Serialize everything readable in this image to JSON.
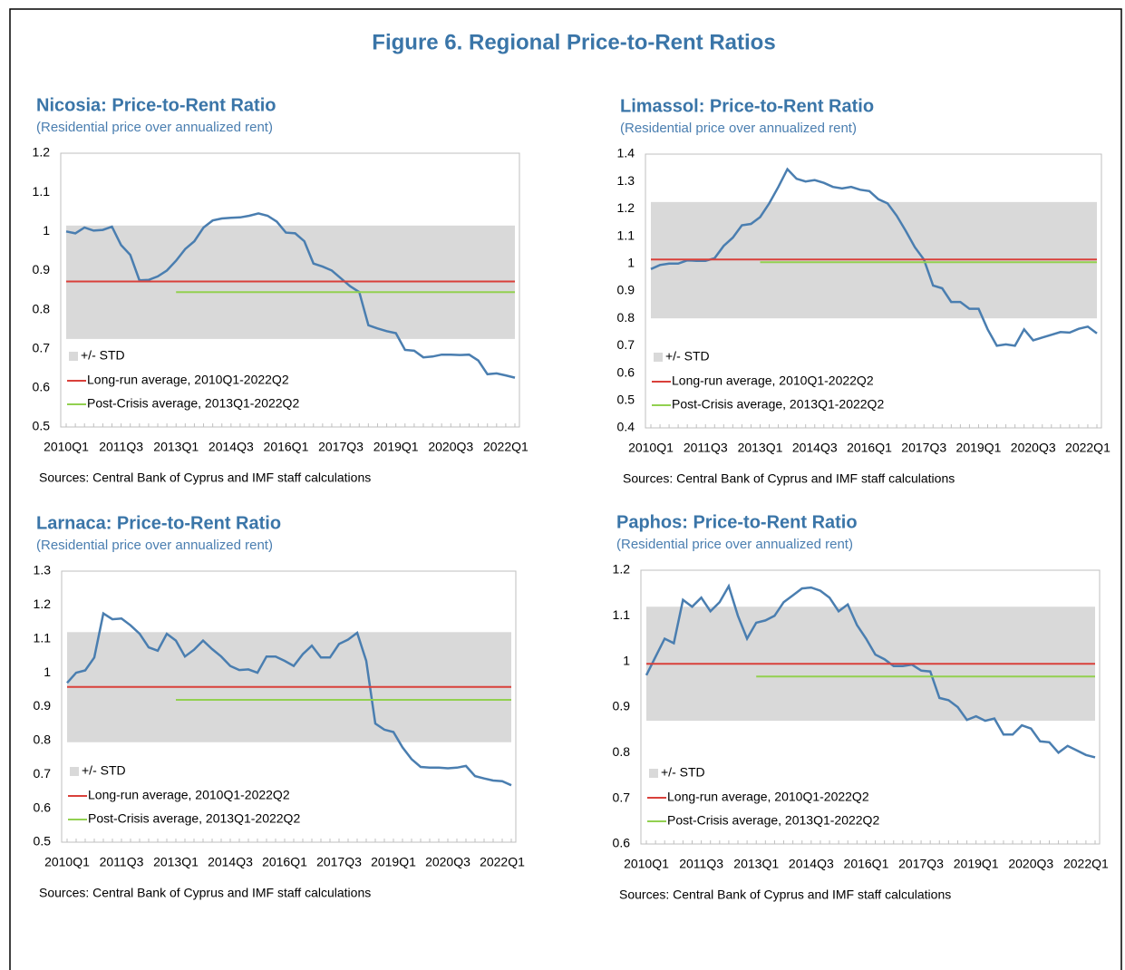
{
  "title": "Figure 6. Regional Price-to-Rent Ratios",
  "chart_data": [
    {
      "type": "line",
      "title": "Nicosia: Price-to-Rent Ratio",
      "subtitle": "(Residential price over annualized rent)",
      "source": "Sources: Central Bank of Cyprus and IMF staff calculations",
      "categories": [
        "2010Q1",
        null,
        null,
        null,
        null,
        null,
        "2011Q3",
        null,
        null,
        null,
        null,
        null,
        "2013Q1",
        null,
        null,
        null,
        null,
        null,
        "2014Q3",
        null,
        null,
        null,
        null,
        null,
        "2016Q1",
        null,
        null,
        null,
        null,
        null,
        "2017Q3",
        null,
        null,
        null,
        null,
        null,
        "2019Q1",
        null,
        null,
        null,
        null,
        null,
        "2020Q3",
        null,
        null,
        null,
        null,
        null,
        "2022Q1",
        null
      ],
      "ylim": [
        0.5,
        1.2
      ],
      "yticks": [
        0.5,
        0.6,
        0.7,
        0.8,
        0.9,
        1,
        1.1,
        1.2
      ],
      "band": {
        "name": "+/- STD",
        "color": "#d9d9d9",
        "low": 0.725,
        "high": 1.015
      },
      "series": [
        {
          "color": "#4a7eb0",
          "values": [
            1.0,
            0.995,
            1.01,
            1.002,
            1.004,
            1.012,
            0.965,
            0.94,
            0.875,
            0.876,
            0.885,
            0.9,
            0.925,
            0.955,
            0.975,
            1.01,
            1.028,
            1.033,
            1.035,
            1.036,
            1.04,
            1.046,
            1.04,
            1.025,
            0.997,
            0.995,
            0.975,
            0.918,
            0.91,
            0.9,
            0.88,
            0.86,
            0.845,
            0.76,
            0.752,
            0.745,
            0.74,
            0.697,
            0.695,
            0.678,
            0.68,
            0.685,
            0.685,
            0.684,
            0.685,
            0.67,
            0.635,
            0.637,
            0.632,
            0.626
          ]
        },
        {
          "name": "Long-run average, 2010Q1-2022Q2",
          "color": "#d9403a",
          "values": [
            0.872,
            0.872,
            0.872,
            0.872,
            0.872,
            0.872,
            0.872,
            0.872,
            0.872,
            0.872,
            0.872,
            0.872,
            0.872,
            0.872,
            0.872,
            0.872,
            0.872,
            0.872,
            0.872,
            0.872,
            0.872,
            0.872,
            0.872,
            0.872,
            0.872,
            0.872,
            0.872,
            0.872,
            0.872,
            0.872,
            0.872,
            0.872,
            0.872,
            0.872,
            0.872,
            0.872,
            0.872,
            0.872,
            0.872,
            0.872,
            0.872,
            0.872,
            0.872,
            0.872,
            0.872,
            0.872,
            0.872,
            0.872,
            0.872,
            0.872
          ]
        },
        {
          "name": "Post-Crisis average, 2013Q1-2022Q2",
          "color": "#92d050",
          "values": [
            null,
            null,
            null,
            null,
            null,
            null,
            null,
            null,
            null,
            null,
            null,
            null,
            0.845,
            0.845,
            0.845,
            0.845,
            0.845,
            0.845,
            0.845,
            0.845,
            0.845,
            0.845,
            0.845,
            0.845,
            0.845,
            0.845,
            0.845,
            0.845,
            0.845,
            0.845,
            0.845,
            0.845,
            0.845,
            0.845,
            0.845,
            0.845,
            0.845,
            0.845,
            0.845,
            0.845,
            0.845,
            0.845,
            0.845,
            0.845,
            0.845,
            0.845,
            0.845,
            0.845,
            0.845,
            0.845
          ]
        }
      ]
    },
    {
      "type": "line",
      "title": "Limassol: Price-to-Rent Ratio",
      "subtitle": "(Residential price over annualized rent)",
      "source": "Sources: Central Bank of Cyprus and IMF staff calculations",
      "categories": [
        "2010Q1",
        null,
        null,
        null,
        null,
        null,
        "2011Q3",
        null,
        null,
        null,
        null,
        null,
        "2013Q1",
        null,
        null,
        null,
        null,
        null,
        "2014Q3",
        null,
        null,
        null,
        null,
        null,
        "2016Q1",
        null,
        null,
        null,
        null,
        null,
        "2017Q3",
        null,
        null,
        null,
        null,
        null,
        "2019Q1",
        null,
        null,
        null,
        null,
        null,
        "2020Q3",
        null,
        null,
        null,
        null,
        null,
        "2022Q1",
        null
      ],
      "ylim": [
        0.4,
        1.4
      ],
      "yticks": [
        0.4,
        0.5,
        0.6,
        0.7,
        0.8,
        0.9,
        1,
        1.1,
        1.2,
        1.3,
        1.4
      ],
      "band": {
        "name": "+/- STD",
        "color": "#d9d9d9",
        "low": 0.8,
        "high": 1.225
      },
      "series": [
        {
          "color": "#4a7eb0",
          "values": [
            0.98,
            0.995,
            1.0,
            1.0,
            1.012,
            1.01,
            1.01,
            1.02,
            1.065,
            1.095,
            1.14,
            1.145,
            1.17,
            1.22,
            1.28,
            1.345,
            1.31,
            1.3,
            1.305,
            1.295,
            1.28,
            1.275,
            1.28,
            1.27,
            1.265,
            1.235,
            1.22,
            1.175,
            1.12,
            1.06,
            1.015,
            0.92,
            0.91,
            0.86,
            0.86,
            0.835,
            0.835,
            0.76,
            0.7,
            0.705,
            0.7,
            0.76,
            0.72,
            0.73,
            0.74,
            0.75,
            0.748,
            0.762,
            0.77,
            0.745
          ]
        },
        {
          "name": "Long-run average, 2010Q1-2022Q2",
          "color": "#d9403a",
          "values": [
            1.015,
            1.015,
            1.015,
            1.015,
            1.015,
            1.015,
            1.015,
            1.015,
            1.015,
            1.015,
            1.015,
            1.015,
            1.015,
            1.015,
            1.015,
            1.015,
            1.015,
            1.015,
            1.015,
            1.015,
            1.015,
            1.015,
            1.015,
            1.015,
            1.015,
            1.015,
            1.015,
            1.015,
            1.015,
            1.015,
            1.015,
            1.015,
            1.015,
            1.015,
            1.015,
            1.015,
            1.015,
            1.015,
            1.015,
            1.015,
            1.015,
            1.015,
            1.015,
            1.015,
            1.015,
            1.015,
            1.015,
            1.015,
            1.015,
            1.015
          ]
        },
        {
          "name": "Post-Crisis average, 2013Q1-2022Q2",
          "color": "#92d050",
          "values": [
            null,
            null,
            null,
            null,
            null,
            null,
            null,
            null,
            null,
            null,
            null,
            null,
            1.005,
            1.005,
            1.005,
            1.005,
            1.005,
            1.005,
            1.005,
            1.005,
            1.005,
            1.005,
            1.005,
            1.005,
            1.005,
            1.005,
            1.005,
            1.005,
            1.005,
            1.005,
            1.005,
            1.005,
            1.005,
            1.005,
            1.005,
            1.005,
            1.005,
            1.005,
            1.005,
            1.005,
            1.005,
            1.005,
            1.005,
            1.005,
            1.005,
            1.005,
            1.005,
            1.005,
            1.005,
            1.005
          ]
        }
      ]
    },
    {
      "type": "line",
      "title": "Larnaca: Price-to-Rent Ratio",
      "subtitle": "(Residential price over annualized rent)",
      "source": "Sources: Central Bank of Cyprus and IMF staff calculations",
      "categories": [
        "2010Q1",
        null,
        null,
        null,
        null,
        null,
        "2011Q3",
        null,
        null,
        null,
        null,
        null,
        "2013Q1",
        null,
        null,
        null,
        null,
        null,
        "2014Q3",
        null,
        null,
        null,
        null,
        null,
        "2016Q1",
        null,
        null,
        null,
        null,
        null,
        "2017Q3",
        null,
        null,
        null,
        null,
        null,
        "2019Q1",
        null,
        null,
        null,
        null,
        null,
        "2020Q3",
        null,
        null,
        null,
        null,
        null,
        "2022Q1",
        null
      ],
      "ylim": [
        0.5,
        1.3
      ],
      "yticks": [
        0.5,
        0.6,
        0.7,
        0.8,
        0.9,
        1,
        1.1,
        1.2,
        1.3
      ],
      "band": {
        "name": "+/- STD",
        "color": "#d9d9d9",
        "low": 0.795,
        "high": 1.12
      },
      "series": [
        {
          "color": "#4a7eb0",
          "values": [
            0.97,
            1.0,
            1.007,
            1.045,
            1.175,
            1.158,
            1.16,
            1.14,
            1.115,
            1.075,
            1.065,
            1.115,
            1.095,
            1.048,
            1.068,
            1.095,
            1.07,
            1.048,
            1.02,
            1.008,
            1.01,
            1.0,
            1.048,
            1.048,
            1.035,
            1.02,
            1.055,
            1.08,
            1.045,
            1.045,
            1.085,
            1.098,
            1.118,
            1.035,
            0.85,
            0.832,
            0.825,
            0.78,
            0.745,
            0.722,
            0.72,
            0.72,
            0.718,
            0.72,
            0.725,
            0.695,
            0.688,
            0.682,
            0.68,
            0.668
          ]
        },
        {
          "name": "Long-run average, 2010Q1-2022Q2",
          "color": "#d9403a",
          "values": [
            0.958,
            0.958,
            0.958,
            0.958,
            0.958,
            0.958,
            0.958,
            0.958,
            0.958,
            0.958,
            0.958,
            0.958,
            0.958,
            0.958,
            0.958,
            0.958,
            0.958,
            0.958,
            0.958,
            0.958,
            0.958,
            0.958,
            0.958,
            0.958,
            0.958,
            0.958,
            0.958,
            0.958,
            0.958,
            0.958,
            0.958,
            0.958,
            0.958,
            0.958,
            0.958,
            0.958,
            0.958,
            0.958,
            0.958,
            0.958,
            0.958,
            0.958,
            0.958,
            0.958,
            0.958,
            0.958,
            0.958,
            0.958,
            0.958,
            0.958
          ]
        },
        {
          "name": "Post-Crisis average, 2013Q1-2022Q2",
          "color": "#92d050",
          "values": [
            null,
            null,
            null,
            null,
            null,
            null,
            null,
            null,
            null,
            null,
            null,
            null,
            0.92,
            0.92,
            0.92,
            0.92,
            0.92,
            0.92,
            0.92,
            0.92,
            0.92,
            0.92,
            0.92,
            0.92,
            0.92,
            0.92,
            0.92,
            0.92,
            0.92,
            0.92,
            0.92,
            0.92,
            0.92,
            0.92,
            0.92,
            0.92,
            0.92,
            0.92,
            0.92,
            0.92,
            0.92,
            0.92,
            0.92,
            0.92,
            0.92,
            0.92,
            0.92,
            0.92,
            0.92,
            0.92
          ]
        }
      ]
    },
    {
      "type": "line",
      "title": "Paphos: Price-to-Rent Ratio",
      "subtitle": "(Residential price over annualized rent)",
      "source": "Sources: Central Bank of Cyprus and IMF staff calculations",
      "categories": [
        "2010Q1",
        null,
        null,
        null,
        null,
        null,
        "2011Q3",
        null,
        null,
        null,
        null,
        null,
        "2013Q1",
        null,
        null,
        null,
        null,
        null,
        "2014Q3",
        null,
        null,
        null,
        null,
        null,
        "2016Q1",
        null,
        null,
        null,
        null,
        null,
        "2017Q3",
        null,
        null,
        null,
        null,
        null,
        "2019Q1",
        null,
        null,
        null,
        null,
        null,
        "2020Q3",
        null,
        null,
        null,
        null,
        null,
        "2022Q1",
        null
      ],
      "ylim": [
        0.6,
        1.2
      ],
      "yticks": [
        0.6,
        0.7,
        0.8,
        0.9,
        1,
        1.1,
        1.2
      ],
      "band": {
        "name": "+/- STD",
        "color": "#d9d9d9",
        "low": 0.87,
        "high": 1.12
      },
      "series": [
        {
          "color": "#4a7eb0",
          "values": [
            0.97,
            1.01,
            1.05,
            1.04,
            1.135,
            1.12,
            1.14,
            1.11,
            1.13,
            1.165,
            1.1,
            1.05,
            1.085,
            1.09,
            1.1,
            1.13,
            1.145,
            1.16,
            1.162,
            1.155,
            1.14,
            1.11,
            1.125,
            1.08,
            1.05,
            1.015,
            1.005,
            0.99,
            0.99,
            0.993,
            0.98,
            0.978,
            0.92,
            0.915,
            0.9,
            0.872,
            0.88,
            0.87,
            0.875,
            0.84,
            0.84,
            0.86,
            0.853,
            0.825,
            0.823,
            0.8,
            0.815,
            0.805,
            0.795,
            0.79
          ]
        },
        {
          "name": "Long-run average, 2010Q1-2022Q2",
          "color": "#d9403a",
          "values": [
            0.995,
            0.995,
            0.995,
            0.995,
            0.995,
            0.995,
            0.995,
            0.995,
            0.995,
            0.995,
            0.995,
            0.995,
            0.995,
            0.995,
            0.995,
            0.995,
            0.995,
            0.995,
            0.995,
            0.995,
            0.995,
            0.995,
            0.995,
            0.995,
            0.995,
            0.995,
            0.995,
            0.995,
            0.995,
            0.995,
            0.995,
            0.995,
            0.995,
            0.995,
            0.995,
            0.995,
            0.995,
            0.995,
            0.995,
            0.995,
            0.995,
            0.995,
            0.995,
            0.995,
            0.995,
            0.995,
            0.995,
            0.995,
            0.995,
            0.995
          ]
        },
        {
          "name": "Post-Crisis average, 2013Q1-2022Q2",
          "color": "#92d050",
          "values": [
            null,
            null,
            null,
            null,
            null,
            null,
            null,
            null,
            null,
            null,
            null,
            null,
            0.967,
            0.967,
            0.967,
            0.967,
            0.967,
            0.967,
            0.967,
            0.967,
            0.967,
            0.967,
            0.967,
            0.967,
            0.967,
            0.967,
            0.967,
            0.967,
            0.967,
            0.967,
            0.967,
            0.967,
            0.967,
            0.967,
            0.967,
            0.967,
            0.967,
            0.967,
            0.967,
            0.967,
            0.967,
            0.967,
            0.967,
            0.967,
            0.967,
            0.967,
            0.967,
            0.967,
            0.967,
            0.967
          ]
        }
      ]
    }
  ]
}
